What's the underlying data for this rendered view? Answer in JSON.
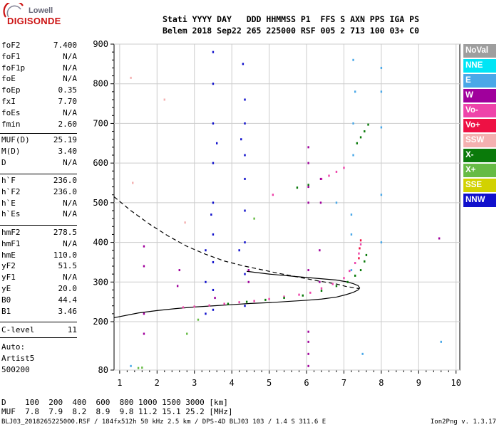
{
  "logo": {
    "line1": "Lowell",
    "line2": "DIGISONDE"
  },
  "header": {
    "line1": "Stati YYYY DAY   DDD HHMMSS P1  FFS S AXN PPS IGA PS",
    "line2": "Belem 2018 Sep22 265 225000 RSF 005 2 713 100 03+ C0"
  },
  "params": {
    "group1": [
      {
        "label": "foF2",
        "value": "7.400"
      },
      {
        "label": "foF1",
        "value": "N/A"
      },
      {
        "label": "foF1p",
        "value": "N/A"
      },
      {
        "label": "foE",
        "value": "N/A"
      },
      {
        "label": "foEp",
        "value": "0.35"
      },
      {
        "label": "fxI",
        "value": "7.70"
      },
      {
        "label": "foEs",
        "value": "N/A"
      },
      {
        "label": "fmin",
        "value": "2.60"
      }
    ],
    "group2": [
      {
        "label": "MUF(D)",
        "value": "25.19"
      },
      {
        "label": "M(D)",
        "value": "3.40"
      },
      {
        "label": "D",
        "value": "N/A"
      }
    ],
    "group3": [
      {
        "label": "h`F",
        "value": "236.0"
      },
      {
        "label": "h`F2",
        "value": "236.0"
      },
      {
        "label": "h`E",
        "value": "N/A"
      },
      {
        "label": "h`Es",
        "value": "N/A"
      }
    ],
    "group4": [
      {
        "label": "hmF2",
        "value": "278.5"
      },
      {
        "label": "hmF1",
        "value": "N/A"
      },
      {
        "label": "hmE",
        "value": "110.0"
      },
      {
        "label": "yF2",
        "value": "51.5"
      },
      {
        "label": "yF1",
        "value": "N/A"
      },
      {
        "label": "yE",
        "value": "20.0"
      },
      {
        "label": "B0",
        "value": "44.4"
      },
      {
        "label": "B1",
        "value": "3.46"
      }
    ],
    "group5": [
      {
        "label": "C-level",
        "value": "11"
      }
    ],
    "auto": {
      "line1": "Auto:",
      "line2": "Artist5",
      "line3": "500200"
    }
  },
  "legend": [
    {
      "label": "NoVal",
      "color": "#9e9e9e"
    },
    {
      "label": "NNE",
      "color": "#00e5f5"
    },
    {
      "label": "E",
      "color": "#4aa8e8"
    },
    {
      "label": "W",
      "color": "#a0009c"
    },
    {
      "label": "Vo-",
      "color": "#ee44aa"
    },
    {
      "label": "Vo+",
      "color": "#ee1144"
    },
    {
      "label": "SSW",
      "color": "#f4b0b0"
    },
    {
      "label": "X-",
      "color": "#0a7a0a"
    },
    {
      "label": "X+",
      "color": "#66bb44"
    },
    {
      "label": "SSE",
      "color": "#d2d200"
    },
    {
      "label": "NNW",
      "color": "#1010cc"
    }
  ],
  "chart_data": {
    "type": "scatter",
    "x_ticks": [
      "1",
      "2",
      "3",
      "4",
      "5",
      "6",
      "7",
      "8",
      "9",
      "10"
    ],
    "y_ticks": [
      "80",
      "200",
      "300",
      "400",
      "500",
      "600",
      "700",
      "800",
      "900"
    ],
    "xlim": [
      0.85,
      10.1
    ],
    "ylim": [
      80,
      900
    ],
    "grid": true,
    "series": [
      {
        "color": "#1010cc",
        "points": [
          [
            3.5,
            230
          ],
          [
            3.5,
            280
          ],
          [
            3.5,
            350
          ],
          [
            3.5,
            420
          ],
          [
            3.5,
            500
          ],
          [
            3.5,
            600
          ],
          [
            3.5,
            700
          ],
          [
            3.5,
            800
          ],
          [
            3.5,
            880
          ],
          [
            3.3,
            220
          ],
          [
            3.3,
            300
          ],
          [
            3.3,
            380
          ],
          [
            4.35,
            240
          ],
          [
            4.35,
            320
          ],
          [
            4.35,
            400
          ],
          [
            4.35,
            480
          ],
          [
            4.35,
            560
          ],
          [
            4.35,
            620
          ],
          [
            4.35,
            700
          ],
          [
            4.35,
            760
          ],
          [
            3.45,
            470
          ],
          [
            3.6,
            650
          ],
          [
            4.2,
            380
          ],
          [
            4.25,
            660
          ],
          [
            4.3,
            850
          ]
        ]
      },
      {
        "color": "#ee44aa",
        "points": [
          [
            2.7,
            236
          ],
          [
            3.0,
            238
          ],
          [
            3.4,
            241
          ],
          [
            3.8,
            245
          ],
          [
            4.2,
            249
          ],
          [
            4.6,
            252
          ],
          [
            5.0,
            257
          ],
          [
            5.4,
            263
          ],
          [
            5.8,
            268
          ],
          [
            6.1,
            273
          ],
          [
            6.4,
            284
          ],
          [
            6.7,
            295
          ],
          [
            7.0,
            310
          ],
          [
            7.15,
            328
          ],
          [
            7.3,
            348
          ],
          [
            7.4,
            372
          ],
          [
            7.45,
            395
          ],
          [
            6.4,
            560
          ],
          [
            6.6,
            568
          ],
          [
            6.8,
            578
          ],
          [
            7.0,
            588
          ],
          [
            5.1,
            520
          ]
        ]
      },
      {
        "color": "#ee1144",
        "points": [
          [
            7.4,
            360
          ],
          [
            7.42,
            385
          ],
          [
            7.45,
            405
          ]
        ]
      },
      {
        "color": "#0a7a0a",
        "points": [
          [
            3.9,
            245
          ],
          [
            4.4,
            250
          ],
          [
            4.9,
            255
          ],
          [
            5.4,
            260
          ],
          [
            5.9,
            266
          ],
          [
            6.4,
            278
          ],
          [
            6.8,
            290
          ],
          [
            7.1,
            300
          ],
          [
            7.3,
            316
          ],
          [
            7.45,
            330
          ],
          [
            7.55,
            352
          ],
          [
            7.6,
            368
          ],
          [
            7.35,
            650
          ],
          [
            7.45,
            665
          ],
          [
            7.55,
            680
          ],
          [
            7.65,
            697
          ],
          [
            5.75,
            538
          ],
          [
            6.05,
            545
          ]
        ]
      },
      {
        "color": "#a0009c",
        "points": [
          [
            1.65,
            340
          ],
          [
            1.65,
            390
          ],
          [
            2.55,
            290
          ],
          [
            2.6,
            330
          ],
          [
            6.05,
            600
          ],
          [
            6.05,
            640
          ],
          [
            6.05,
            540
          ],
          [
            6.05,
            500
          ],
          [
            6.05,
            330
          ],
          [
            6.05,
            90
          ],
          [
            6.05,
            120
          ],
          [
            6.05,
            150
          ],
          [
            6.05,
            175
          ],
          [
            6.35,
            300
          ],
          [
            6.35,
            380
          ],
          [
            6.38,
            500
          ],
          [
            6.38,
            560
          ],
          [
            4.45,
            300
          ],
          [
            4.45,
            330
          ],
          [
            3.55,
            260
          ],
          [
            1.65,
            170
          ],
          [
            1.65,
            220
          ],
          [
            9.55,
            410
          ]
        ]
      },
      {
        "color": "#4aa8e8",
        "points": [
          [
            7.2,
            330
          ],
          [
            7.2,
            420
          ],
          [
            7.2,
            470
          ],
          [
            7.25,
            620
          ],
          [
            7.25,
            700
          ],
          [
            7.3,
            780
          ],
          [
            7.25,
            860
          ],
          [
            8.0,
            400
          ],
          [
            8.0,
            520
          ],
          [
            8.0,
            690
          ],
          [
            8.0,
            780
          ],
          [
            8.0,
            840
          ],
          [
            6.8,
            500
          ],
          [
            7.5,
            120
          ],
          [
            9.6,
            150
          ],
          [
            1.3,
            90
          ]
        ]
      },
      {
        "color": "#66bb44",
        "points": [
          [
            1.6,
            86
          ],
          [
            1.5,
            85
          ],
          [
            4.6,
            460
          ],
          [
            2.8,
            170
          ],
          [
            3.1,
            205
          ]
        ]
      },
      {
        "color": "#f4b0b0",
        "points": [
          [
            1.3,
            815
          ],
          [
            2.2,
            760
          ],
          [
            2.75,
            450
          ],
          [
            1.35,
            550
          ]
        ]
      }
    ],
    "profile_solid": {
      "x": [
        0.85,
        1.5,
        2.0,
        2.5,
        3.0,
        3.5,
        4.0,
        4.5,
        5.0,
        5.5,
        6.0,
        6.4,
        6.8,
        7.05,
        7.25,
        7.38,
        7.42,
        7.38,
        7.25,
        7.05,
        6.8,
        6.3,
        5.7,
        5.0,
        4.4
      ],
      "y": [
        210,
        222,
        228,
        233,
        237,
        240,
        243,
        246,
        248,
        251,
        254,
        257,
        262,
        268,
        274,
        280,
        285,
        291,
        296,
        301,
        305,
        309,
        314,
        320,
        327
      ]
    },
    "profile_dashed": {
      "x": [
        0.85,
        1.3,
        1.8,
        2.3,
        2.8,
        3.3,
        3.8,
        4.3,
        4.8,
        5.3,
        5.8,
        6.3,
        6.8,
        7.05,
        7.3,
        7.42
      ],
      "y": [
        515,
        480,
        446,
        416,
        390,
        370,
        353,
        341,
        331,
        321,
        312,
        303,
        295,
        289,
        285,
        283
      ]
    }
  },
  "distance_table": {
    "line1": "D    100  200  400  600  800 1000 1500 3000 [km]",
    "line2": "MUF  7.8  7.9  8.2  8.9  9.8 11.2 15.1 25.2 [MHz]"
  },
  "footer": {
    "left": "BLJ03_2018265225000.RSF / 184fx512h 50 kHz 2.5 km / DPS-4D BLJ03 103 / 1.4 S 311.6 E",
    "right": "Ion2Png v. 1.3.17"
  }
}
